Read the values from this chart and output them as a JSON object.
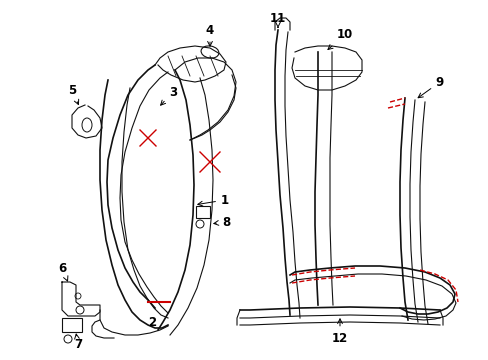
{
  "figsize": [
    4.89,
    3.6
  ],
  "dpi": 100,
  "background_color": "#ffffff",
  "line_color": "#111111",
  "red_color": "#cc0000",
  "xlim": [
    0,
    489
  ],
  "ylim": [
    0,
    360
  ]
}
